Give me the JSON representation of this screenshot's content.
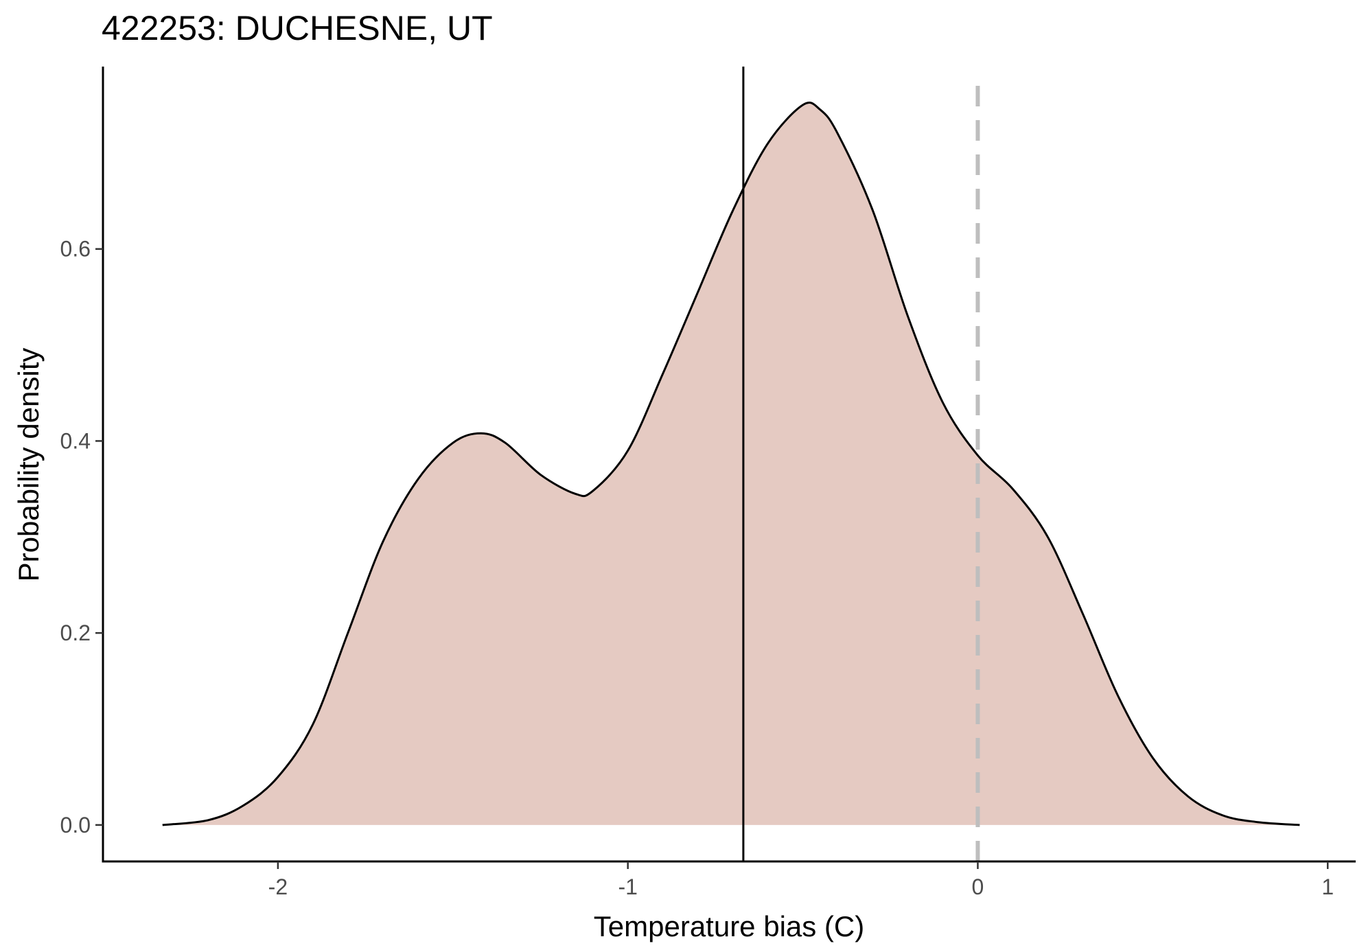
{
  "chart_data": {
    "type": "area",
    "title": "422253: DUCHESNE, UT",
    "xlabel": "Temperature bias (C)",
    "ylabel": "Probability density",
    "xlim": [
      -2.5,
      1.08
    ],
    "ylim": [
      -0.038,
      0.79
    ],
    "xticks": [
      -2,
      -1,
      0,
      1
    ],
    "xtick_labels": [
      "-2",
      "-1",
      "0",
      "1"
    ],
    "yticks": [
      0.0,
      0.2,
      0.4,
      0.6
    ],
    "ytick_labels": [
      "0.0",
      "0.2",
      "0.4",
      "0.6"
    ],
    "grid": false,
    "fill_color": "#e5cac2",
    "line_color": "#000000",
    "series": [
      {
        "x": [
          -2.33,
          -2.2,
          -2.1,
          -2.0,
          -1.9,
          -1.8,
          -1.7,
          -1.6,
          -1.5,
          -1.42,
          -1.35,
          -1.25,
          -1.15,
          -1.1,
          -1.0,
          -0.9,
          -0.8,
          -0.7,
          -0.6,
          -0.5,
          -0.45,
          -0.4,
          -0.3,
          -0.2,
          -0.1,
          0.0,
          0.1,
          0.2,
          0.3,
          0.4,
          0.5,
          0.6,
          0.7,
          0.8,
          0.92
        ],
        "y": [
          0.0,
          0.005,
          0.02,
          0.05,
          0.105,
          0.2,
          0.295,
          0.36,
          0.398,
          0.408,
          0.398,
          0.365,
          0.345,
          0.348,
          0.39,
          0.47,
          0.555,
          0.64,
          0.71,
          0.75,
          0.745,
          0.72,
          0.64,
          0.53,
          0.44,
          0.385,
          0.35,
          0.3,
          0.22,
          0.135,
          0.07,
          0.03,
          0.01,
          0.003,
          0.0
        ]
      }
    ],
    "reference_lines": [
      {
        "x": -0.67,
        "style": "solid",
        "color": "#000000"
      },
      {
        "x": 0.0,
        "style": "dashed",
        "color": "#bebebe"
      }
    ]
  }
}
